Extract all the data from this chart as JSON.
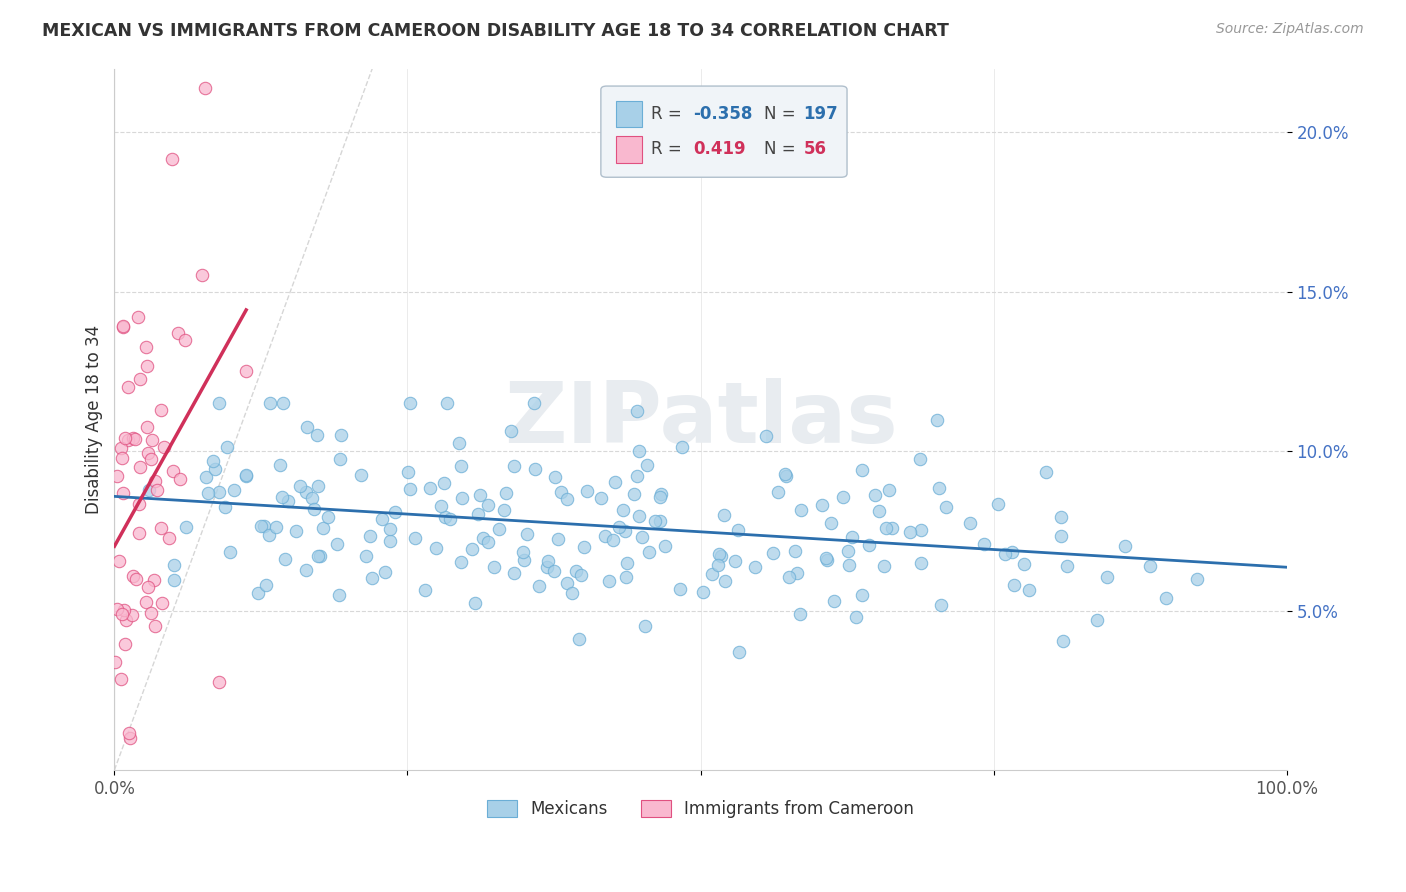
{
  "title": "MEXICAN VS IMMIGRANTS FROM CAMEROON DISABILITY AGE 18 TO 34 CORRELATION CHART",
  "source": "Source: ZipAtlas.com",
  "ylabel": "Disability Age 18 to 34",
  "xlim": [
    0.0,
    1.0
  ],
  "ylim": [
    0.0,
    0.22
  ],
  "yticks": [
    0.05,
    0.1,
    0.15,
    0.2
  ],
  "ytick_labels": [
    "5.0%",
    "10.0%",
    "15.0%",
    "20.0%"
  ],
  "xticks": [
    0.0,
    0.25,
    0.5,
    0.75,
    1.0
  ],
  "xtick_labels": [
    "0.0%",
    "",
    "",
    "",
    "100.0%"
  ],
  "blue_color": "#a8d0e8",
  "blue_edge_color": "#6baed6",
  "pink_color": "#f9b8cf",
  "pink_edge_color": "#e05080",
  "blue_line_color": "#2c6fad",
  "pink_line_color": "#d0305a",
  "diag_color": "#cccccc",
  "watermark_color": "#e8ecf0",
  "blue_R": -0.358,
  "blue_N": 197,
  "pink_R": 0.419,
  "pink_N": 56,
  "legend_box_color": "#f0f4f8",
  "legend_border_color": "#b0bfcc"
}
